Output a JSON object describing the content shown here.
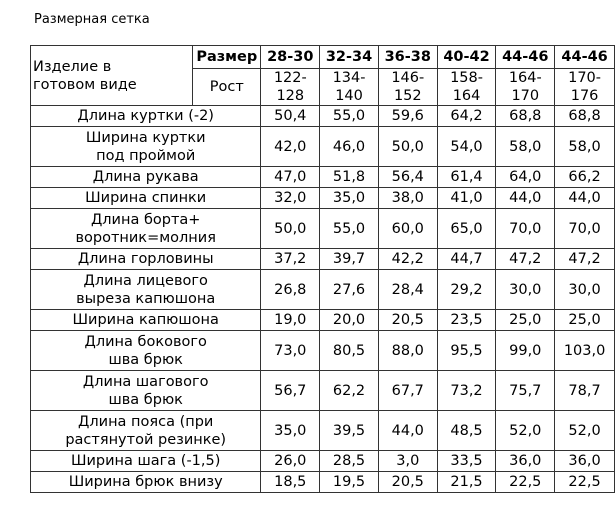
{
  "title": "Размерная сетка",
  "header": {
    "product_label": "Изделие в\nготовом виде",
    "size_label": "Размер",
    "height_label": "Рост",
    "sizes": [
      "28-30",
      "32-34",
      "36-38",
      "40-42",
      "44-46",
      "44-46"
    ],
    "heights": [
      "122-128",
      "134-140",
      "146-152",
      "158-164",
      "164-170",
      "170-176"
    ]
  },
  "rows": [
    {
      "label": "Длина куртки (-2)",
      "values": [
        "50,4",
        "55,0",
        "59,6",
        "64,2",
        "68,8",
        "68,8"
      ]
    },
    {
      "label": "Ширина куртки\nпод проймой",
      "values": [
        "42,0",
        "46,0",
        "50,0",
        "54,0",
        "58,0",
        "58,0"
      ]
    },
    {
      "label": "Длина рукава",
      "values": [
        "47,0",
        "51,8",
        "56,4",
        "61,4",
        "64,0",
        "66,2"
      ]
    },
    {
      "label": "Ширина спинки",
      "values": [
        "32,0",
        "35,0",
        "38,0",
        "41,0",
        "44,0",
        "44,0"
      ]
    },
    {
      "label": "Длина борта+\nворотник=молния",
      "values": [
        "50,0",
        "55,0",
        "60,0",
        "65,0",
        "70,0",
        "70,0"
      ]
    },
    {
      "label": "Длина горловины",
      "values": [
        "37,2",
        "39,7",
        "42,2",
        "44,7",
        "47,2",
        "47,2"
      ]
    },
    {
      "label": "Длина лицевого\nвыреза капюшона",
      "values": [
        "26,8",
        "27,6",
        "28,4",
        "29,2",
        "30,0",
        "30,0"
      ]
    },
    {
      "label": "Ширина капюшона",
      "values": [
        "19,0",
        "20,0",
        "20,5",
        "23,5",
        "25,0",
        "25,0"
      ]
    },
    {
      "label": "Длина бокового\nшва брюк",
      "values": [
        "73,0",
        "80,5",
        "88,0",
        "95,5",
        "99,0",
        "103,0"
      ]
    },
    {
      "label": "Длина шагового\nшва брюк",
      "values": [
        "56,7",
        "62,2",
        "67,7",
        "73,2",
        "75,7",
        "78,7"
      ]
    },
    {
      "label": "Длина пояса (при\nрастянутой резинке)",
      "values": [
        "35,0",
        "39,5",
        "44,0",
        "48,5",
        "52,0",
        "52,0"
      ]
    },
    {
      "label": "Ширина шага (-1,5)",
      "values": [
        "26,0",
        "28,5",
        "3,0",
        "33,5",
        "36,0",
        "36,0"
      ]
    },
    {
      "label": "Ширина брюк внизу",
      "values": [
        "18,5",
        "19,5",
        "20,5",
        "21,5",
        "22,5",
        "22,5"
      ]
    }
  ]
}
